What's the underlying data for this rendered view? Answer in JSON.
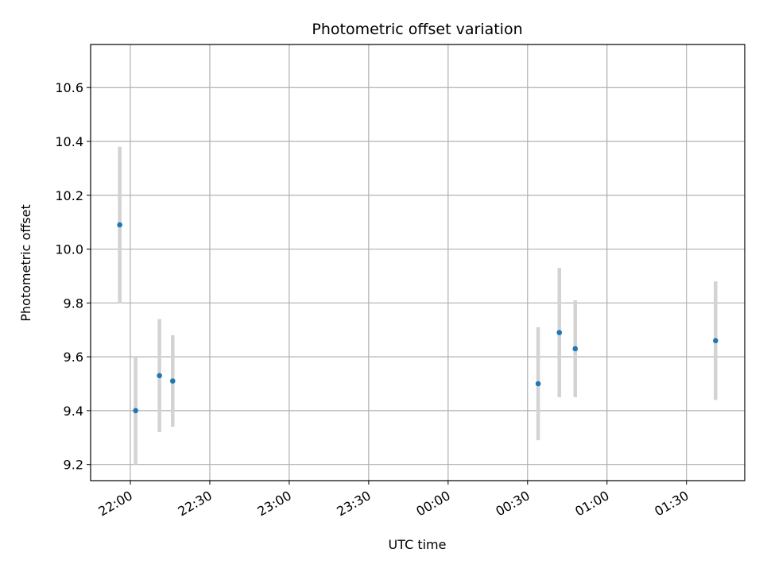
{
  "chart_data": {
    "type": "scatter",
    "title": "Photometric offset variation",
    "xlabel": "UTC time",
    "ylabel": "Photometric offset",
    "x_axis_type": "time",
    "xlim": [
      "21:45",
      "01:52"
    ],
    "ylim": [
      9.14,
      10.76
    ],
    "xticks": [
      "22:00",
      "22:30",
      "23:00",
      "23:30",
      "00:00",
      "00:30",
      "01:00",
      "01:30"
    ],
    "yticks": [
      9.2,
      9.4,
      9.6,
      9.8,
      10.0,
      10.2,
      10.4,
      10.6
    ],
    "ytick_labels": [
      "9.2",
      "9.4",
      "9.6",
      "9.8",
      "10.0",
      "10.2",
      "10.4",
      "10.6"
    ],
    "grid": true,
    "legend": "none",
    "x_tick_rotation": "30deg",
    "point_color": "#1f77b4",
    "errorbar_color": "#d3d3d3",
    "points": [
      {
        "time": "21:56",
        "value": 10.09,
        "error": 0.29
      },
      {
        "time": "22:02",
        "value": 9.4,
        "error": 0.2
      },
      {
        "time": "22:11",
        "value": 9.53,
        "error": 0.21
      },
      {
        "time": "22:16",
        "value": 9.51,
        "error": 0.17
      },
      {
        "time": "00:34",
        "value": 9.5,
        "error": 0.21
      },
      {
        "time": "00:42",
        "value": 9.69,
        "error": 0.24
      },
      {
        "time": "00:48",
        "value": 9.63,
        "error": 0.18
      },
      {
        "time": "01:41",
        "value": 9.66,
        "error": 0.22
      }
    ]
  }
}
